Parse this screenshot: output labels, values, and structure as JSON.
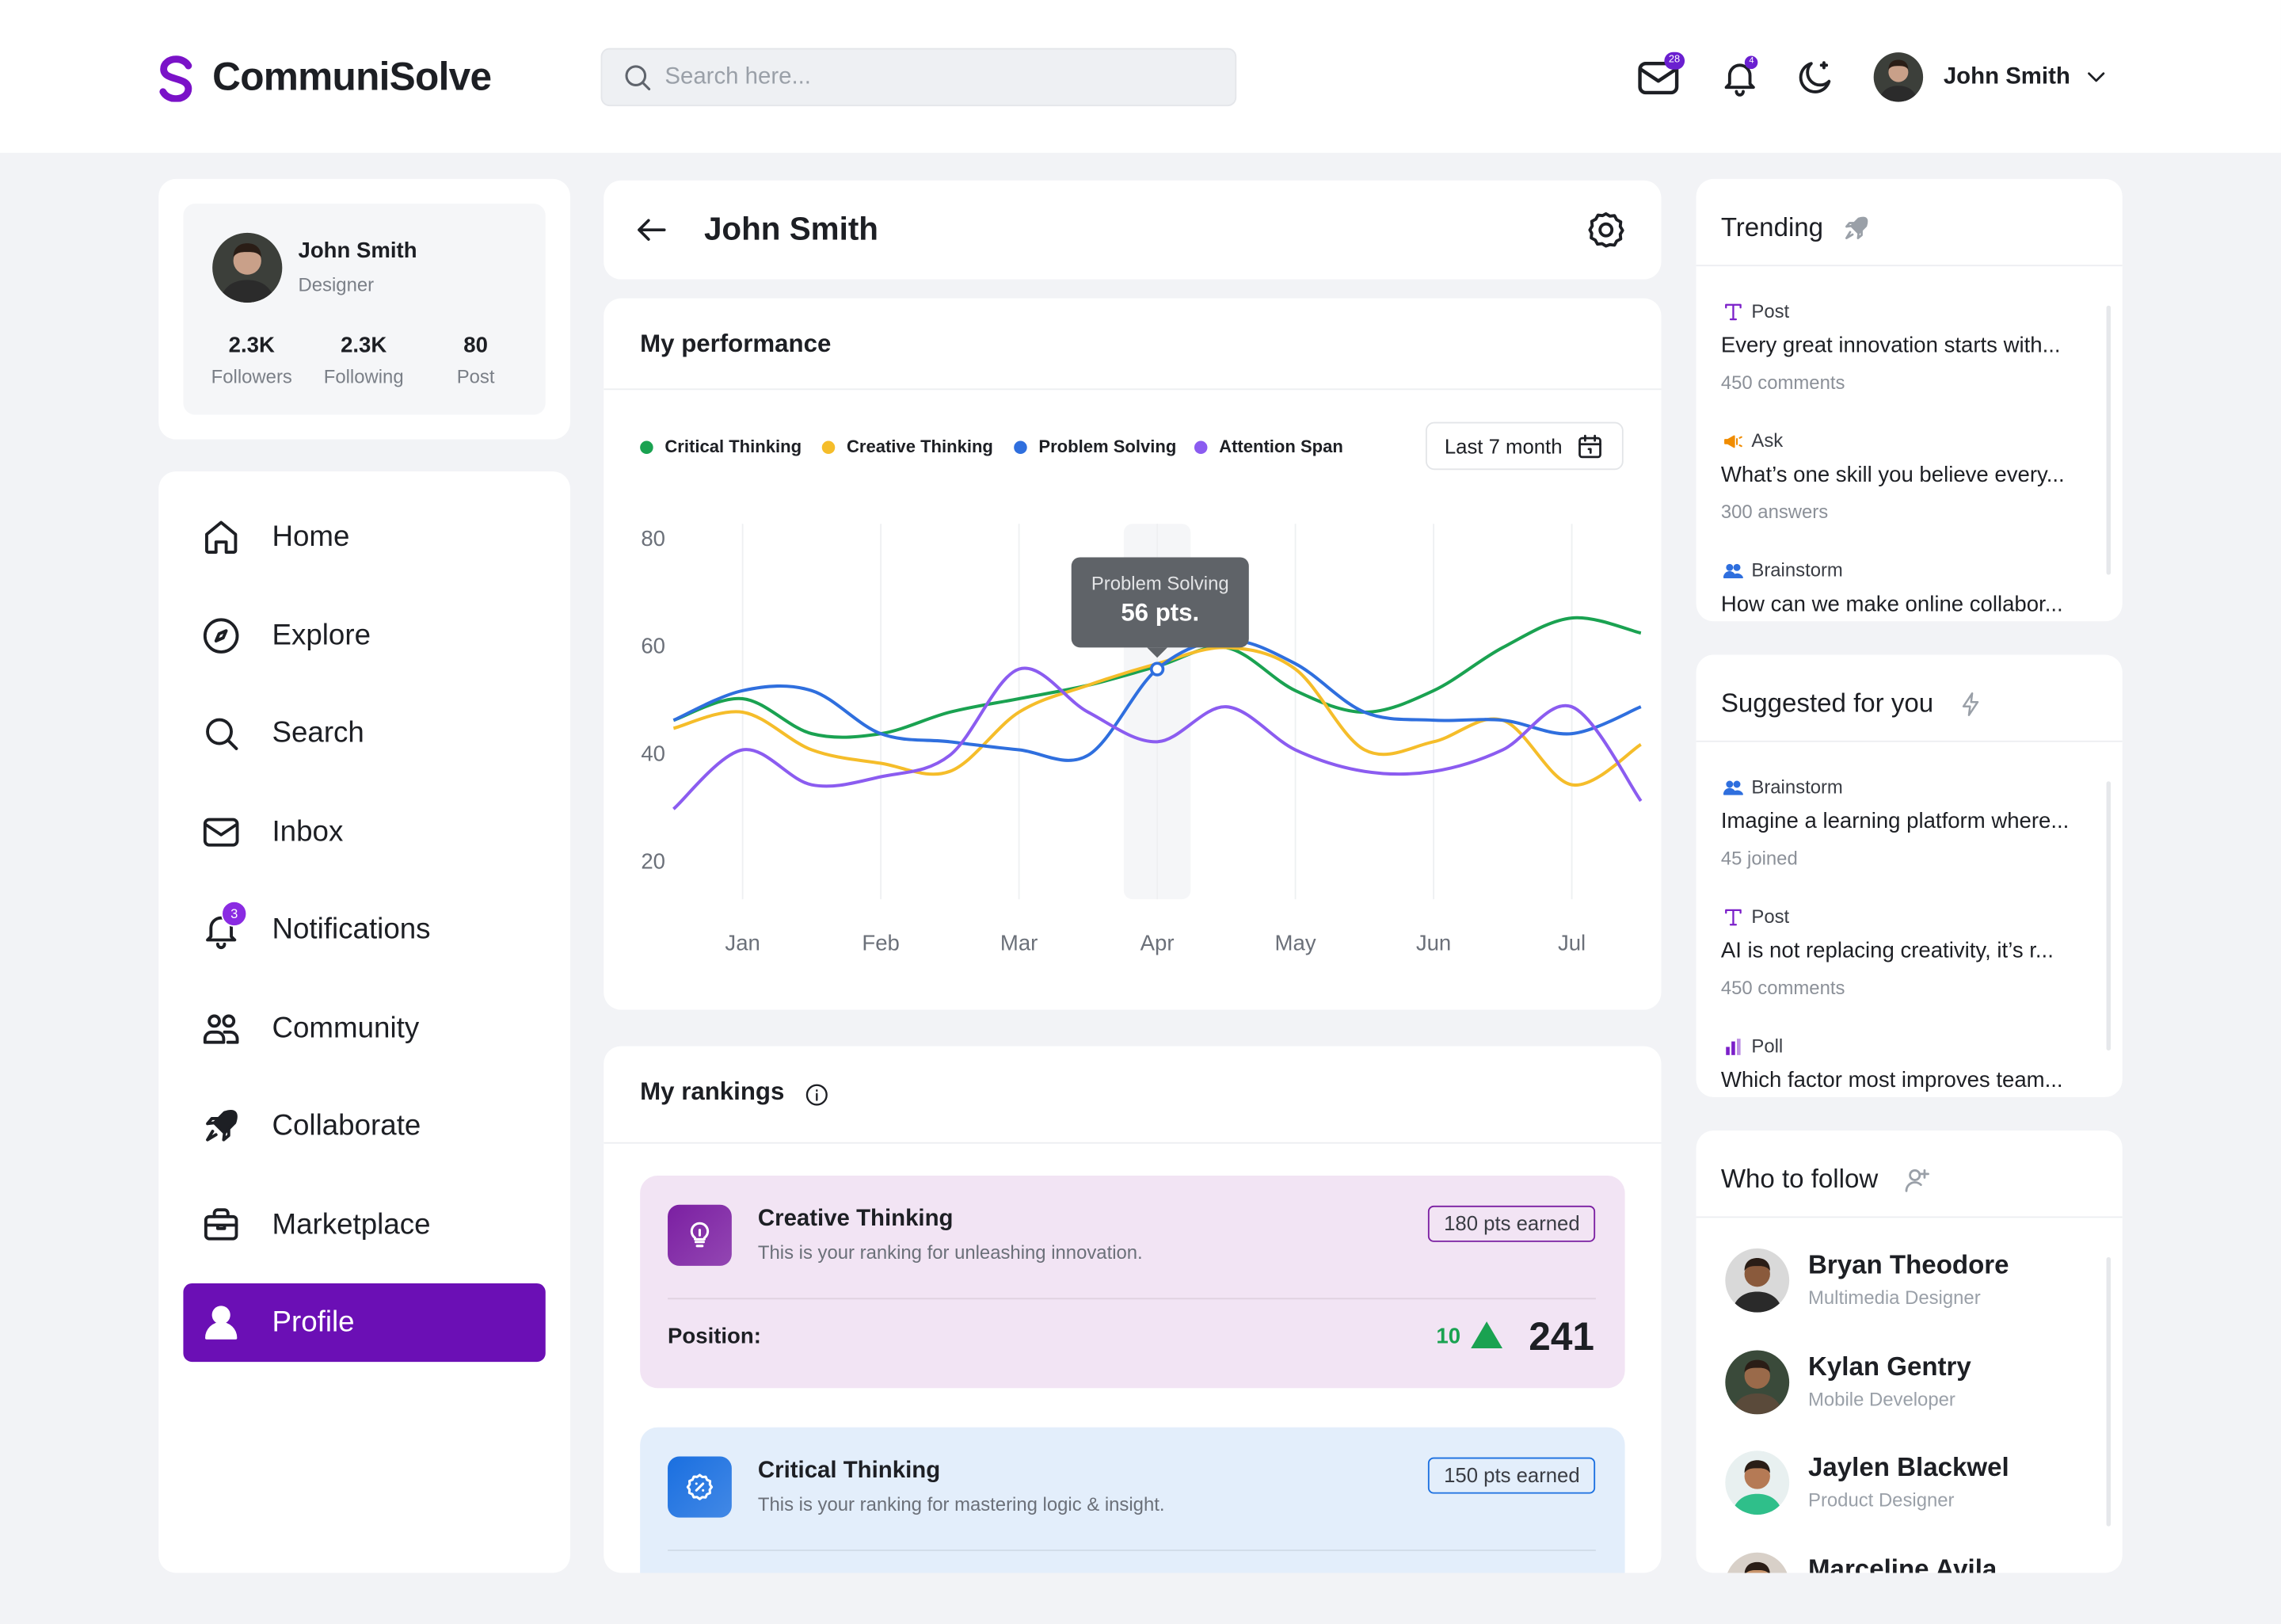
{
  "header": {
    "brand": "CommuniSolve",
    "search_placeholder": "Search here...",
    "mail_badge": "28",
    "bell_badge": "4",
    "user": "John Smith"
  },
  "profile": {
    "name": "John Smith",
    "role": "Designer",
    "stats": [
      {
        "value": "2.3K",
        "label": "Followers"
      },
      {
        "value": "2.3K",
        "label": "Following"
      },
      {
        "value": "80",
        "label": "Post"
      }
    ]
  },
  "nav": {
    "items": [
      "Home",
      "Explore",
      "Search",
      "Inbox",
      "Notifications",
      "Community",
      "Collaborate",
      "Marketplace",
      "Profile"
    ],
    "notification_badge": "3",
    "active": "Profile"
  },
  "page": {
    "title": "John Smith"
  },
  "performance": {
    "title": "My performance",
    "range_button": "Last 7 month",
    "tooltip": {
      "series": "Problem Solving",
      "label": "56 pts."
    },
    "chart_data": {
      "type": "line",
      "categories": [
        null,
        "Jan",
        null,
        "Feb",
        null,
        "Mar",
        null,
        "Apr",
        null,
        "May",
        null,
        "Jun",
        null,
        "Jul",
        null
      ],
      "series": [
        {
          "name": "Critical Thinking",
          "color": "#1aa251",
          "values": [
            46.5,
            50.5,
            44,
            44,
            48,
            50.5,
            53,
            56.5,
            60,
            52,
            48,
            52,
            60,
            65.5,
            62.7
          ]
        },
        {
          "name": "Creative Thinking",
          "color": "#f5bd2a",
          "values": [
            45,
            48,
            41,
            38.5,
            37,
            48,
            53,
            57,
            60,
            56,
            41,
            42.5,
            46.5,
            34.5,
            42
          ]
        },
        {
          "name": "Problem Solving",
          "color": "#2f6fde",
          "values": [
            46.5,
            52,
            52,
            44,
            42.5,
            41,
            40,
            56,
            61.4,
            57,
            48,
            46.5,
            46.5,
            44,
            49
          ]
        },
        {
          "name": "Attention Span",
          "color": "#8b5cf0",
          "values": [
            30,
            41,
            34.5,
            36,
            40,
            56,
            48,
            42.5,
            49,
            41,
            37,
            37,
            41,
            49,
            31.5
          ]
        }
      ],
      "ylim": [
        15,
        83
      ],
      "yticks": [
        20,
        40,
        60,
        80
      ],
      "grid": true
    }
  },
  "rankings": {
    "title": "My rankings",
    "items": [
      {
        "title": "Creative Thinking",
        "description": "This is your ranking for unleashing innovation.",
        "badge": "180 pts earned",
        "position_label": "Position:",
        "change": "10",
        "position": "241",
        "color": "#7b1fa2",
        "background": "#f2e4f4"
      },
      {
        "title": "Critical Thinking",
        "description": "This is your ranking for mastering logic & insight.",
        "badge": "150 pts earned",
        "color": "#1a6fe0",
        "background": "#e3eefb"
      }
    ]
  },
  "trending": {
    "title": "Trending",
    "items": [
      {
        "type": "Post",
        "text": "Every great innovation starts with...",
        "meta": "450 comments"
      },
      {
        "type": "Ask",
        "text": "What’s one skill you believe every...",
        "meta": "300 answers"
      },
      {
        "type": "Brainstorm",
        "text": "How can we make online collabor..."
      }
    ]
  },
  "suggested": {
    "title": "Suggested for you",
    "items": [
      {
        "type": "Brainstorm",
        "text": "Imagine a learning platform where...",
        "meta": "45 joined"
      },
      {
        "type": "Post",
        "text": "AI is not replacing creativity, it’s r...",
        "meta": "450 comments"
      },
      {
        "type": "Poll",
        "text": "Which factor most improves team..."
      }
    ]
  },
  "who_to_follow": {
    "title": "Who to follow",
    "people": [
      {
        "name": "Bryan Theodore",
        "role": "Multimedia Designer"
      },
      {
        "name": "Kylan Gentry",
        "role": "Mobile Developer"
      },
      {
        "name": "Jaylen Blackwel",
        "role": "Product Designer"
      },
      {
        "name": "Marceline Avila"
      }
    ]
  }
}
